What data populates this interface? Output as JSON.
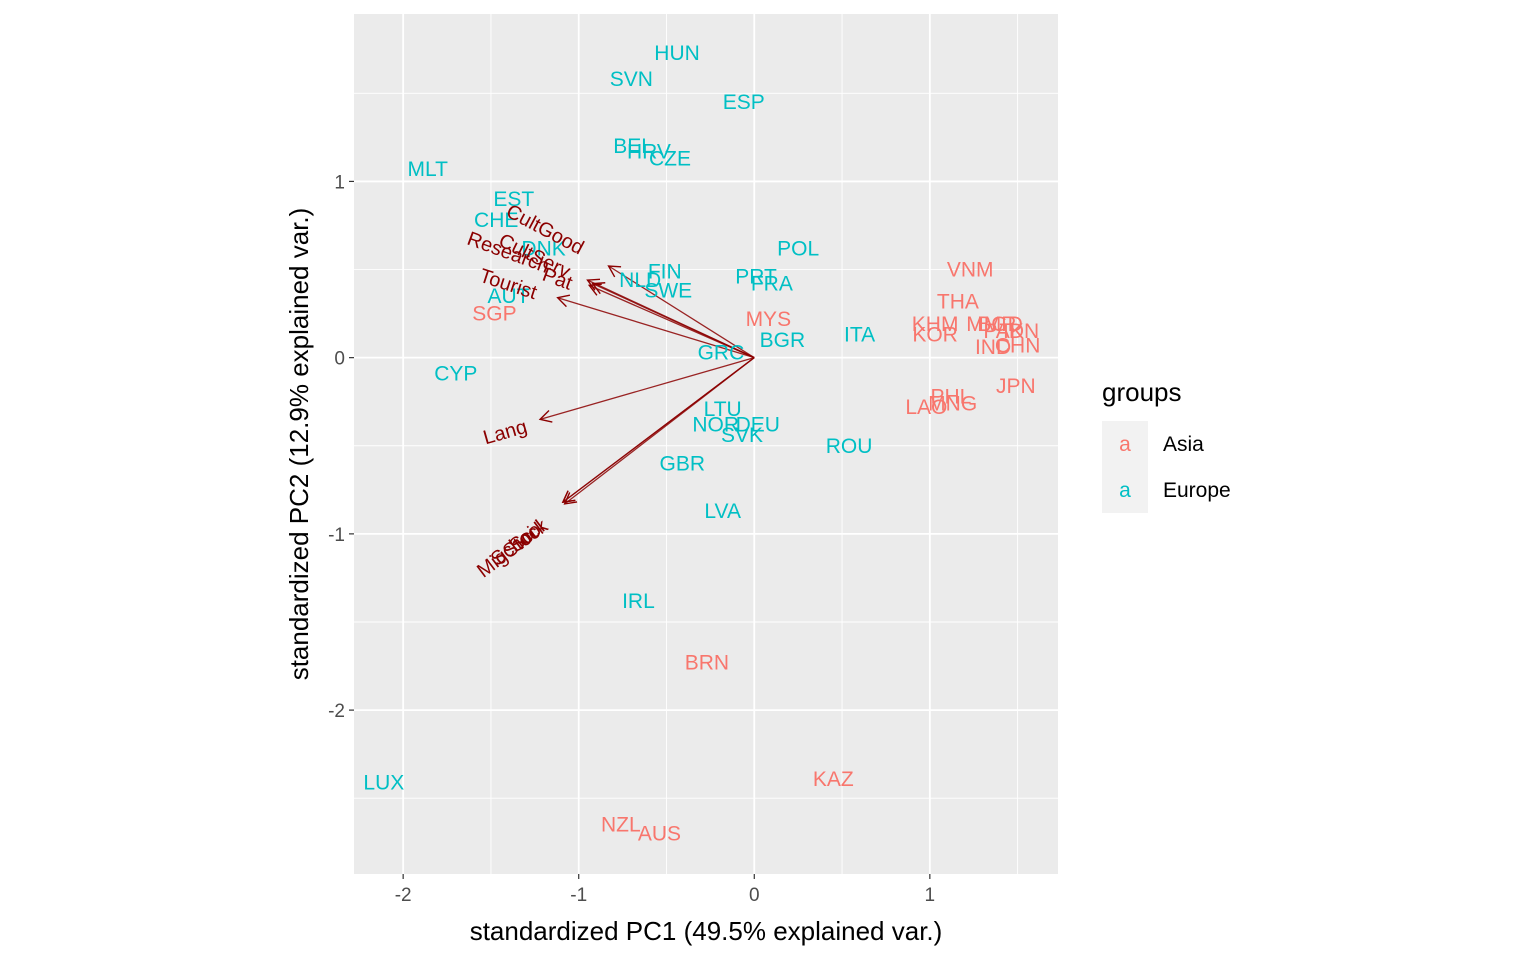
{
  "chart_data": {
    "type": "scatter",
    "subtype": "PCA biplot",
    "xlabel": "standardized PC1 (49.5% explained var.)",
    "ylabel": "standardized PC2 (12.9% explained var.)",
    "xlim": [
      -2.28,
      1.73
    ],
    "ylim": [
      -2.93,
      1.95
    ],
    "x_ticks": [
      -2,
      -1,
      0,
      1
    ],
    "y_ticks": [
      -2,
      -1,
      0,
      1
    ],
    "grid": true,
    "legend": {
      "title": "groups",
      "position": "right",
      "key_glyph": "a",
      "entries": [
        {
          "name": "Asia",
          "color": "#F8766D"
        },
        {
          "name": "Europe",
          "color": "#00BFC4"
        }
      ]
    },
    "colors": {
      "Asia": "#F8766D",
      "Europe": "#00BFC4",
      "arrow": "#8b0000",
      "panel": "#ebebeb"
    },
    "points": [
      {
        "label": "HUN",
        "group": "Europe",
        "x": -0.44,
        "y": 1.73
      },
      {
        "label": "SVN",
        "group": "Europe",
        "x": -0.7,
        "y": 1.58
      },
      {
        "label": "ESP",
        "group": "Europe",
        "x": -0.06,
        "y": 1.45
      },
      {
        "label": "BEL",
        "group": "Europe",
        "x": -0.69,
        "y": 1.2
      },
      {
        "label": "HRV",
        "group": "Europe",
        "x": -0.6,
        "y": 1.17
      },
      {
        "label": "CZE",
        "group": "Europe",
        "x": -0.48,
        "y": 1.13
      },
      {
        "label": "MLT",
        "group": "Europe",
        "x": -1.86,
        "y": 1.07
      },
      {
        "label": "EST",
        "group": "Europe",
        "x": -1.37,
        "y": 0.9
      },
      {
        "label": "CHE",
        "group": "Europe",
        "x": -1.47,
        "y": 0.78
      },
      {
        "label": "DNK",
        "group": "Europe",
        "x": -1.2,
        "y": 0.62
      },
      {
        "label": "POL",
        "group": "Europe",
        "x": 0.25,
        "y": 0.62
      },
      {
        "label": "FIN",
        "group": "Europe",
        "x": -0.51,
        "y": 0.49
      },
      {
        "label": "NLD",
        "group": "Europe",
        "x": -0.65,
        "y": 0.44
      },
      {
        "label": "PRT",
        "group": "Europe",
        "x": 0.01,
        "y": 0.46
      },
      {
        "label": "FRA",
        "group": "Europe",
        "x": 0.1,
        "y": 0.42
      },
      {
        "label": "SWE",
        "group": "Europe",
        "x": -0.49,
        "y": 0.38
      },
      {
        "label": "AUT",
        "group": "Europe",
        "x": -1.4,
        "y": 0.35
      },
      {
        "label": "ITA",
        "group": "Europe",
        "x": 0.6,
        "y": 0.13
      },
      {
        "label": "BGR",
        "group": "Europe",
        "x": 0.16,
        "y": 0.1
      },
      {
        "label": "GRC",
        "group": "Europe",
        "x": -0.19,
        "y": 0.03
      },
      {
        "label": "CYP",
        "group": "Europe",
        "x": -1.7,
        "y": -0.09
      },
      {
        "label": "LTU",
        "group": "Europe",
        "x": -0.18,
        "y": -0.29
      },
      {
        "label": "NOR",
        "group": "Europe",
        "x": -0.22,
        "y": -0.38
      },
      {
        "label": "DEU",
        "group": "Europe",
        "x": 0.02,
        "y": -0.38
      },
      {
        "label": "SVK",
        "group": "Europe",
        "x": -0.07,
        "y": -0.44
      },
      {
        "label": "ROU",
        "group": "Europe",
        "x": 0.54,
        "y": -0.5
      },
      {
        "label": "GBR",
        "group": "Europe",
        "x": -0.41,
        "y": -0.6
      },
      {
        "label": "LVA",
        "group": "Europe",
        "x": -0.18,
        "y": -0.87
      },
      {
        "label": "IRL",
        "group": "Europe",
        "x": -0.66,
        "y": -1.38
      },
      {
        "label": "LUX",
        "group": "Europe",
        "x": -2.11,
        "y": -2.41
      },
      {
        "label": "VNM",
        "group": "Asia",
        "x": 1.23,
        "y": 0.5
      },
      {
        "label": "THA",
        "group": "Asia",
        "x": 1.16,
        "y": 0.32
      },
      {
        "label": "KHM",
        "group": "Asia",
        "x": 1.03,
        "y": 0.19
      },
      {
        "label": "MMR",
        "group": "Asia",
        "x": 1.35,
        "y": 0.19
      },
      {
        "label": "BGD",
        "group": "Asia",
        "x": 1.4,
        "y": 0.19
      },
      {
        "label": "PAK",
        "group": "Asia",
        "x": 1.42,
        "y": 0.15
      },
      {
        "label": "IDN",
        "group": "Asia",
        "x": 1.52,
        "y": 0.15
      },
      {
        "label": "MYS",
        "group": "Asia",
        "x": 0.08,
        "y": 0.22
      },
      {
        "label": "KOR",
        "group": "Asia",
        "x": 1.03,
        "y": 0.13
      },
      {
        "label": "IND",
        "group": "Asia",
        "x": 1.36,
        "y": 0.06
      },
      {
        "label": "CHN",
        "group": "Asia",
        "x": 1.5,
        "y": 0.07
      },
      {
        "label": "SGP",
        "group": "Asia",
        "x": -1.48,
        "y": 0.25
      },
      {
        "label": "JPN",
        "group": "Asia",
        "x": 1.49,
        "y": -0.16
      },
      {
        "label": "PHL",
        "group": "Asia",
        "x": 1.12,
        "y": -0.22
      },
      {
        "label": "LAO",
        "group": "Asia",
        "x": 0.98,
        "y": -0.28
      },
      {
        "label": "MNG",
        "group": "Asia",
        "x": 1.13,
        "y": -0.26
      },
      {
        "label": "BRN",
        "group": "Asia",
        "x": -0.27,
        "y": -1.73
      },
      {
        "label": "KAZ",
        "group": "Asia",
        "x": 0.45,
        "y": -2.39
      },
      {
        "label": "NZL",
        "group": "Asia",
        "x": -0.76,
        "y": -2.65
      },
      {
        "label": "AUS",
        "group": "Asia",
        "x": -0.54,
        "y": -2.7
      }
    ],
    "arrows": [
      {
        "name": "CultGood",
        "x": -0.83,
        "y": 0.52,
        "label_x": -1.19,
        "label_y": 0.73,
        "angle": 28
      },
      {
        "name": "Research",
        "x": -0.95,
        "y": 0.44,
        "label_x": -1.4,
        "label_y": 0.6,
        "angle": 20
      },
      {
        "name": "CultServ",
        "x": -0.92,
        "y": 0.42,
        "label_x": -1.25,
        "label_y": 0.58,
        "angle": 26
      },
      {
        "name": "Pat",
        "x": -0.94,
        "y": 0.41,
        "label_x": -1.12,
        "label_y": 0.45,
        "angle": 20
      },
      {
        "name": "Tourist",
        "x": -1.12,
        "y": 0.34,
        "label_x": -1.4,
        "label_y": 0.42,
        "angle": 18
      },
      {
        "name": "Lang",
        "x": -1.22,
        "y": -0.35,
        "label_x": -1.42,
        "label_y": -0.42,
        "angle": -16
      },
      {
        "name": "Sci",
        "x": -1.09,
        "y": -0.82,
        "label_x": -1.32,
        "label_y": -1.03,
        "angle": -37
      },
      {
        "name": "School",
        "x": -1.08,
        "y": -0.83,
        "label_x": -1.35,
        "label_y": -1.05,
        "angle": -37
      },
      {
        "name": "MigStock",
        "x": -1.09,
        "y": -0.82,
        "label_x": -1.38,
        "label_y": -1.08,
        "angle": -37
      }
    ]
  }
}
